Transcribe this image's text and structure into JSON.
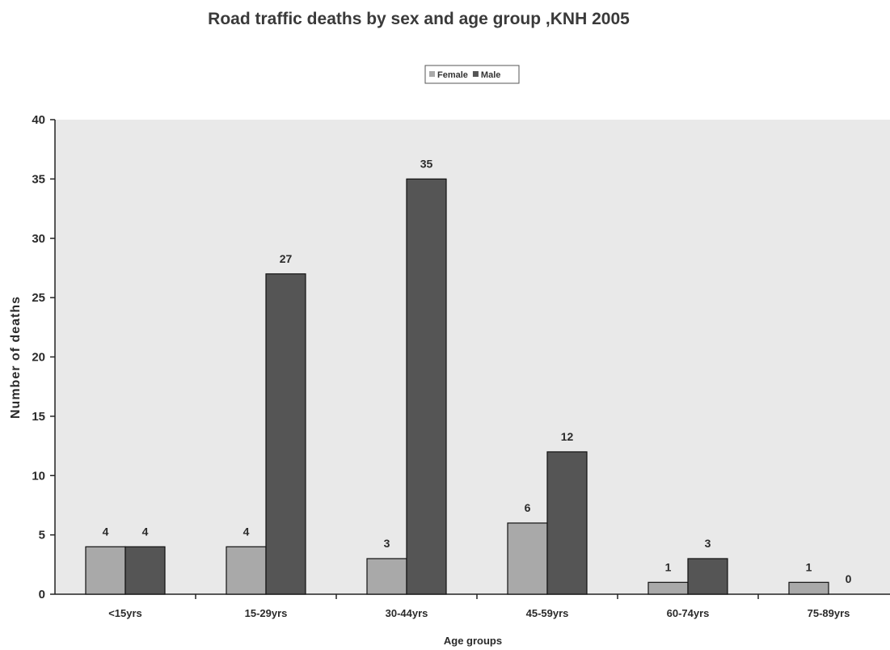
{
  "chart_data": {
    "type": "bar",
    "title": "Road traffic deaths by sex and age group ,KNH 2005",
    "xlabel": "Age groups",
    "ylabel": "Number of deaths",
    "categories": [
      "<15yrs",
      "15-29yrs",
      "30-44yrs",
      "45-59yrs",
      "60-74yrs",
      "75-89yrs"
    ],
    "series": [
      {
        "name": "Female",
        "values": [
          4,
          4,
          3,
          6,
          1,
          1
        ],
        "color": "#a9a9a9"
      },
      {
        "name": "Male",
        "values": [
          4,
          27,
          35,
          12,
          3,
          0
        ],
        "color": "#555555"
      }
    ],
    "ylim": [
      0,
      40
    ],
    "yticks": [
      0,
      5,
      10,
      15,
      20,
      25,
      30,
      35,
      40
    ],
    "grid": false,
    "legend": "top-center",
    "plot_background": "#e9e9e9"
  }
}
